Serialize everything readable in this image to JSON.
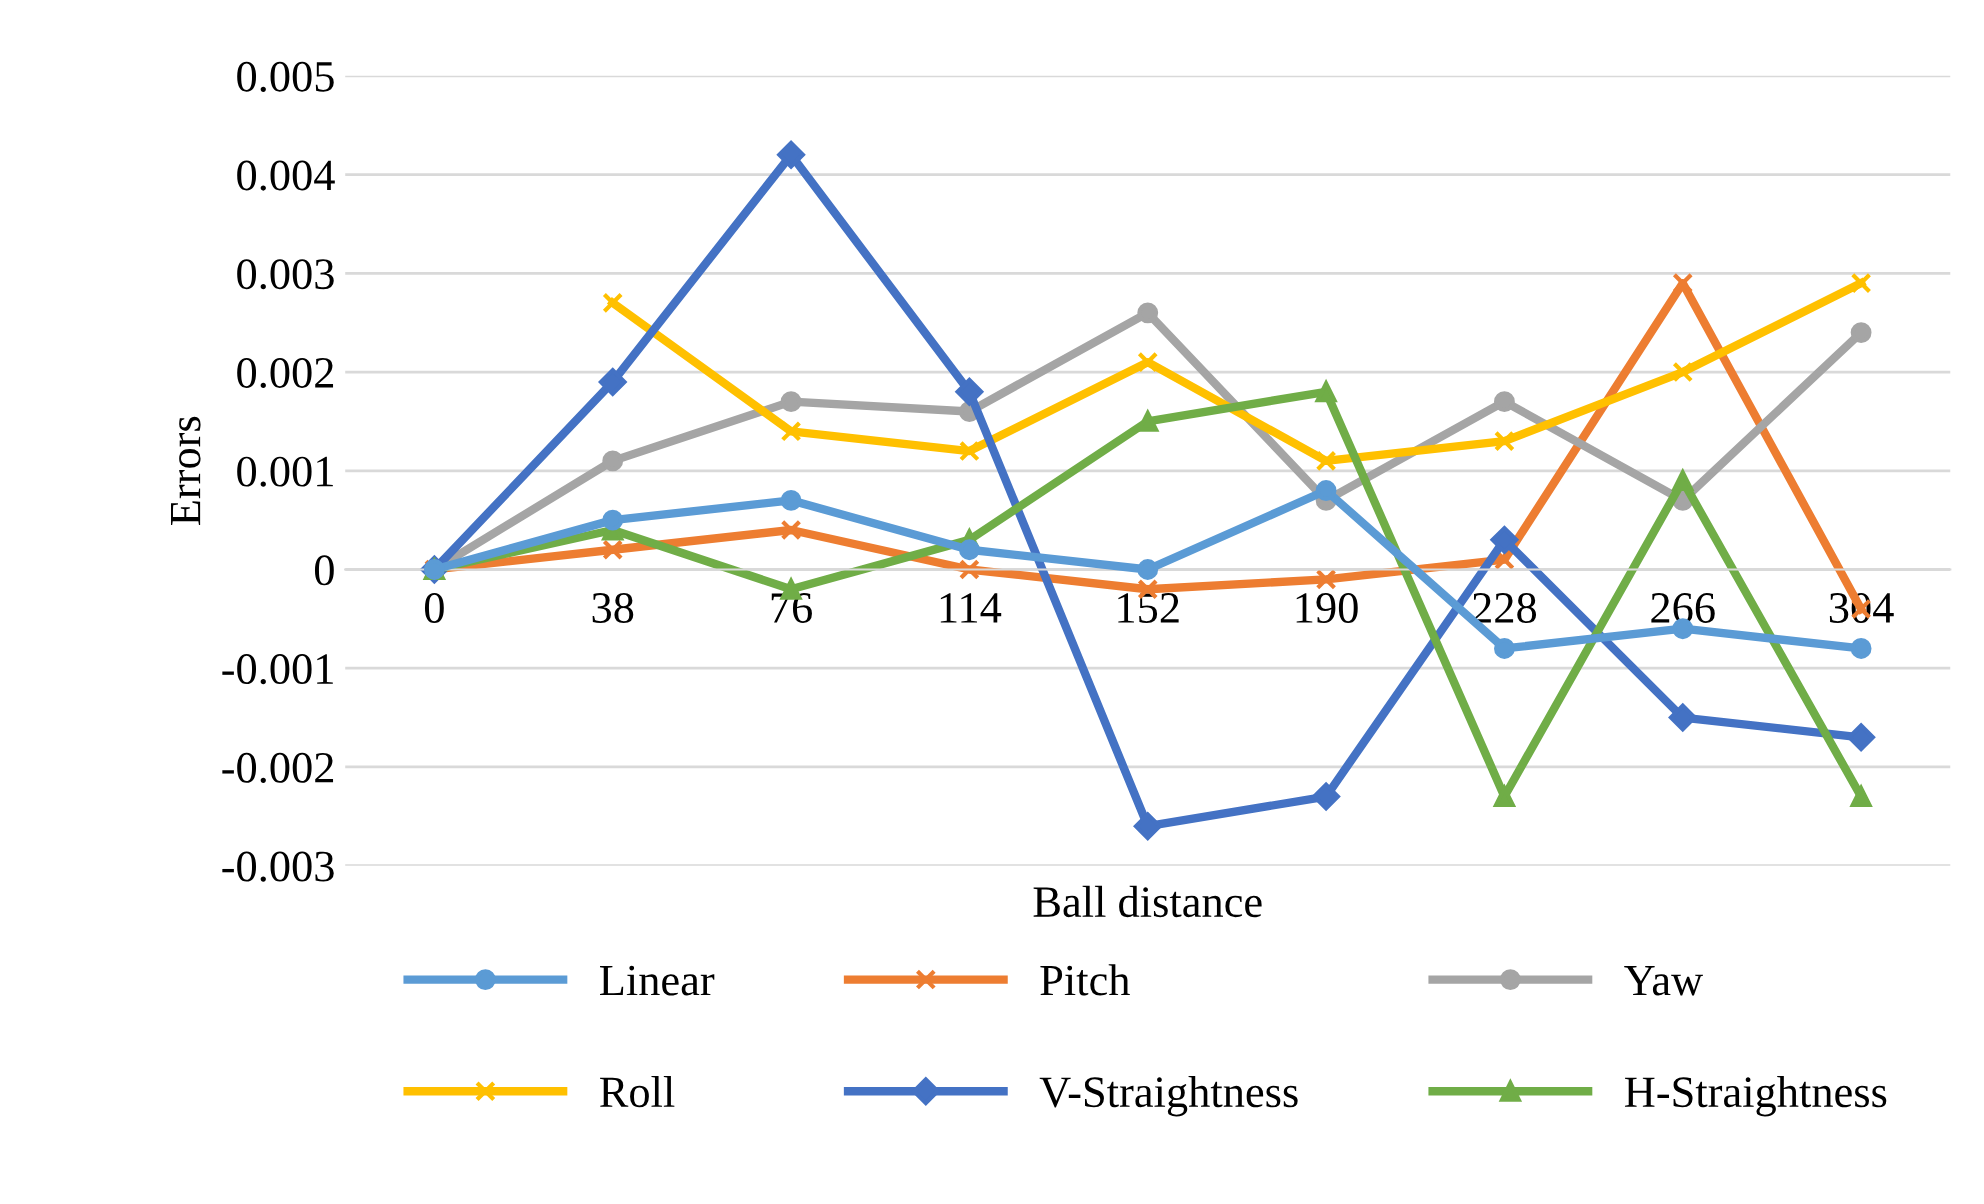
{
  "chart_data": {
    "type": "line",
    "xlabel": "Ball distance",
    "ylabel": "Errors",
    "categories": [
      "0",
      "38",
      "76",
      "114",
      "152",
      "190",
      "228",
      "266",
      "304"
    ],
    "series": [
      {
        "name": "Linear",
        "color": "#5b9bd5",
        "marker": "circle",
        "values": [
          0,
          0.0005,
          0.0007,
          0.0002,
          0,
          0.0008,
          -0.0008,
          -0.0006,
          -0.0008
        ]
      },
      {
        "name": "Pitch",
        "color": "#ed7d31",
        "marker": "cross",
        "values": [
          0,
          0.0002,
          0.0004,
          0,
          -0.0002,
          -0.0001,
          0.0001,
          0.0029,
          -0.0004
        ]
      },
      {
        "name": "Yaw",
        "color": "#a5a5a5",
        "marker": "circle",
        "values": [
          0,
          0.0011,
          0.0017,
          0.0016,
          0.0026,
          0.0007,
          0.0017,
          0.0007,
          0.0024
        ]
      },
      {
        "name": "Roll",
        "color": "#ffc000",
        "marker": "cross",
        "values": [
          null,
          0.0027,
          0.0014,
          0.0012,
          0.0021,
          0.0011,
          0.0013,
          0.002,
          0.0029
        ]
      },
      {
        "name": "V-Straightness",
        "color": "#4472c4",
        "marker": "diamond",
        "values": [
          0,
          0.0019,
          0.0042,
          0.0018,
          -0.0026,
          -0.0023,
          0.0003,
          -0.0015,
          -0.0017
        ]
      },
      {
        "name": "H-Straightness",
        "color": "#70ad47",
        "marker": "triangle",
        "values": [
          0,
          0.0004,
          -0.0002,
          0.0003,
          0.0015,
          0.0018,
          -0.0023,
          0.0009,
          -0.0023
        ]
      }
    ],
    "ylim": [
      -0.003,
      0.005
    ],
    "yticks": [
      -0.003,
      -0.002,
      -0.001,
      0,
      0.001,
      0.002,
      0.003,
      0.004,
      0.005
    ],
    "grid": "y",
    "legend": "bottom",
    "line_style": "solid"
  }
}
